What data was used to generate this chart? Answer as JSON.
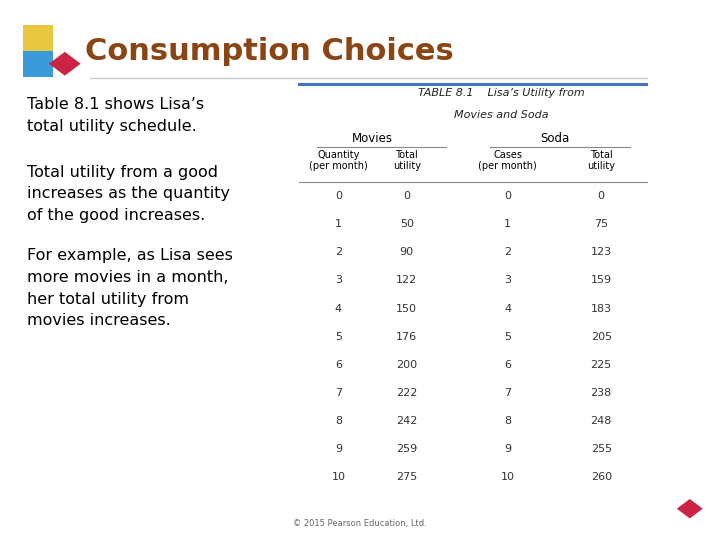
{
  "title": "Consumption Choices",
  "title_color": "#8B4513",
  "bg_color": "#ffffff",
  "left_text": [
    "Table 8.1 shows Lisa’s\ntotal utility schedule.",
    "Total utility from a good\nincreases as the quantity\nof the good increases.",
    "For example, as Lisa sees\nmore movies in a month,\nher total utility from\nmovies increases."
  ],
  "table_title_line1": "TABLE 8.1    Lisa’s Utility from",
  "table_title_line2": "Movies and Soda",
  "col_headers": [
    "Movies",
    "Soda"
  ],
  "rows": [
    [
      0,
      0,
      0,
      0
    ],
    [
      1,
      50,
      1,
      75
    ],
    [
      2,
      90,
      2,
      123
    ],
    [
      3,
      122,
      3,
      159
    ],
    [
      4,
      150,
      4,
      183
    ],
    [
      5,
      176,
      5,
      205
    ],
    [
      6,
      200,
      6,
      225
    ],
    [
      7,
      222,
      7,
      238
    ],
    [
      8,
      242,
      8,
      248
    ],
    [
      9,
      259,
      9,
      255
    ],
    [
      10,
      275,
      10,
      260
    ]
  ],
  "footer": "© 2015 Pearson Education, Ltd.",
  "icon_yellow": "#e8c840",
  "icon_teal": "#3a9ad9",
  "icon_red": "#cc2244",
  "table_border_color": "#4472c4",
  "line_color": "#888888"
}
